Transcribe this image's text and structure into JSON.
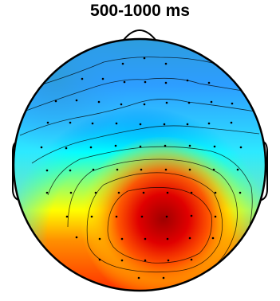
{
  "title": "500-1000 ms",
  "colormap": [
    "#00008f",
    "#0000ff",
    "#007fff",
    "#00ffff",
    "#7fff7f",
    "#ffff00",
    "#ff7f00",
    "#ff0000",
    "#7f0000"
  ],
  "electrode_color": "#000000",
  "outline_color": "#000000"
}
